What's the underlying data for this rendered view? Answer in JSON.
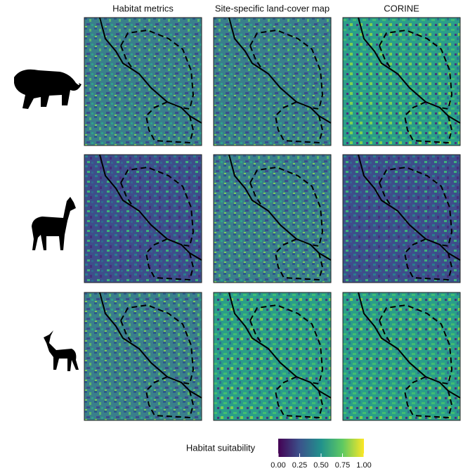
{
  "columns": [
    "Habitat metrics",
    "Site-specific land-cover map",
    "CORINE"
  ],
  "legend": {
    "title": "Habitat suitability",
    "lim": [
      0,
      1
    ],
    "ticks": [
      {
        "value": 0,
        "label": "0.00"
      },
      {
        "value": 0.25,
        "label": "0.25"
      },
      {
        "value": 0.5,
        "label": "0.50"
      },
      {
        "value": 0.75,
        "label": "0.75"
      },
      {
        "value": 1,
        "label": "1.00"
      }
    ],
    "colormap": [
      "#440154",
      "#3b528b",
      "#21918c",
      "#5ec962",
      "#fde725"
    ]
  }
}
